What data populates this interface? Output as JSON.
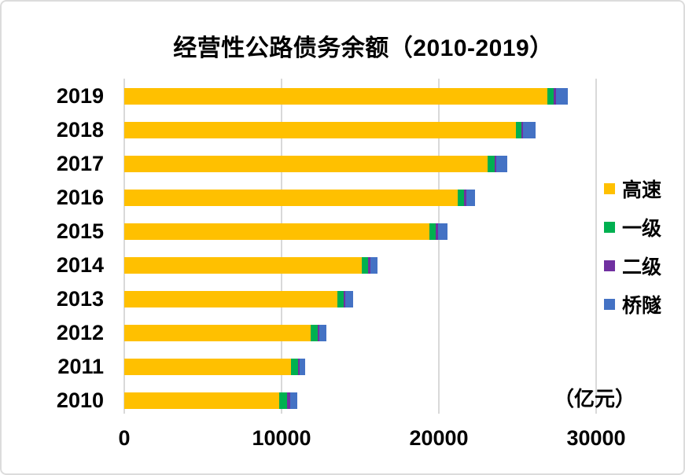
{
  "title": "经营性公路债务余额（2010-2019）",
  "unit_label": "（亿元）",
  "colors": {
    "gridline": "#d9d9d9",
    "background": "#ffffff",
    "border": "#dcdcdc",
    "text": "#000000"
  },
  "chart_data": {
    "type": "bar",
    "orientation": "horizontal",
    "stacked": true,
    "title": "经营性公路债务余额（2010-2019）",
    "unit": "亿元",
    "categories": [
      "2019",
      "2018",
      "2017",
      "2016",
      "2015",
      "2014",
      "2013",
      "2012",
      "2011",
      "2010"
    ],
    "series": [
      {
        "name": "高速",
        "color": "#FFC000",
        "values": [
          26920,
          24920,
          23100,
          21200,
          19390,
          15110,
          13560,
          11860,
          10590,
          9870
        ]
      },
      {
        "name": "一级",
        "color": "#00B050",
        "values": [
          390,
          320,
          430,
          400,
          430,
          400,
          370,
          420,
          450,
          500
        ]
      },
      {
        "name": "二级",
        "color": "#7030A0",
        "values": [
          120,
          130,
          130,
          130,
          130,
          130,
          130,
          130,
          130,
          170
        ]
      },
      {
        "name": "桥隧",
        "color": "#4472C4",
        "values": [
          750,
          800,
          700,
          570,
          620,
          470,
          500,
          450,
          340,
          470
        ]
      }
    ],
    "totals": [
      28180,
      26170,
      24360,
      22300,
      20570,
      16110,
      14560,
      12860,
      11510,
      11010
    ],
    "x_ticks": [
      0,
      10000,
      20000,
      30000
    ],
    "x_tick_labels": [
      "0",
      "10000",
      "20000",
      "30000"
    ],
    "xlim": [
      0,
      30000
    ],
    "grid": true,
    "legend_position": "right"
  }
}
